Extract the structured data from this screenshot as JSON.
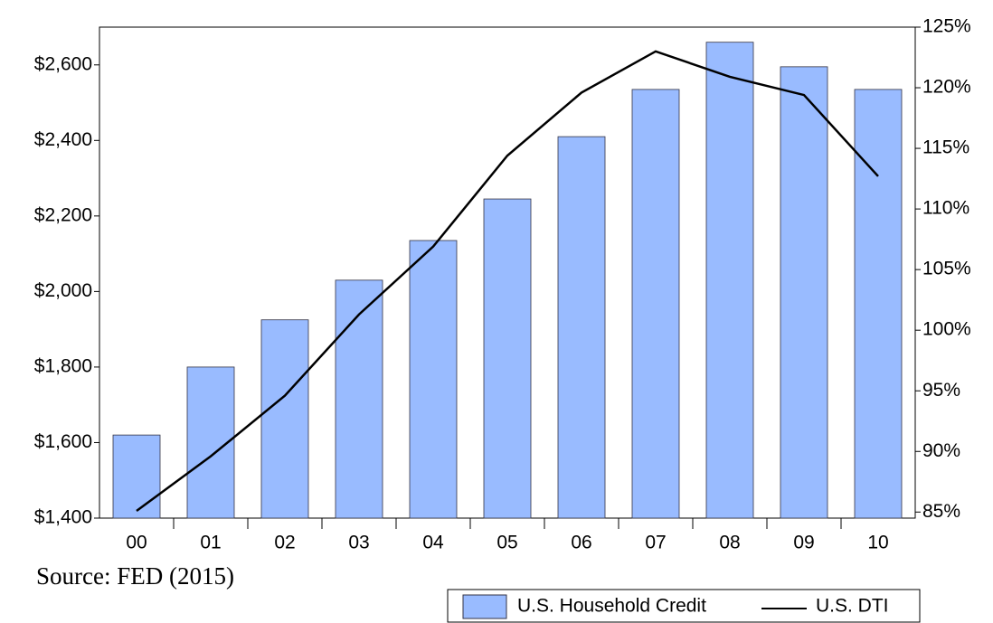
{
  "chart_data": {
    "type": "bar",
    "source": "Source: FED (2015)",
    "categories": [
      "00",
      "01",
      "02",
      "03",
      "04",
      "05",
      "06",
      "07",
      "08",
      "09",
      "10"
    ],
    "series": [
      {
        "name": "U.S. Household Credit",
        "type": "bar",
        "color": "#99bbff",
        "values": [
          1620,
          1800,
          1925,
          2030,
          2135,
          2245,
          2410,
          2535,
          2660,
          2595,
          2535
        ]
      },
      {
        "name": "U.S. DTI",
        "type": "line",
        "axis": "y2",
        "color": "#000000",
        "values": [
          85.1,
          89.6,
          94.6,
          101.3,
          106.9,
          114.4,
          119.6,
          123.0,
          120.9,
          119.4,
          112.7
        ]
      }
    ],
    "ylim": [
      1400,
      2700
    ],
    "yticks": [
      {
        "value": 1400,
        "label": "$1,400"
      },
      {
        "value": 1600,
        "label": "$1,600"
      },
      {
        "value": 1800,
        "label": "$1,800"
      },
      {
        "value": 2000,
        "label": "$2,000"
      },
      {
        "value": 2200,
        "label": "$2,200"
      },
      {
        "value": 2400,
        "label": "$2,400"
      },
      {
        "value": 2600,
        "label": "$2,600"
      }
    ],
    "y2lim": [
      84.5,
      125
    ],
    "y2ticks": [
      {
        "value": 85,
        "label": "85%"
      },
      {
        "value": 90,
        "label": "90%"
      },
      {
        "value": 95,
        "label": "95%"
      },
      {
        "value": 100,
        "label": "100%"
      },
      {
        "value": 105,
        "label": "105%"
      },
      {
        "value": 110,
        "label": "110%"
      },
      {
        "value": 115,
        "label": "115%"
      },
      {
        "value": 120,
        "label": "120%"
      },
      {
        "value": 125,
        "label": "125%"
      }
    ],
    "grid": false,
    "legend": "bottom-right"
  }
}
